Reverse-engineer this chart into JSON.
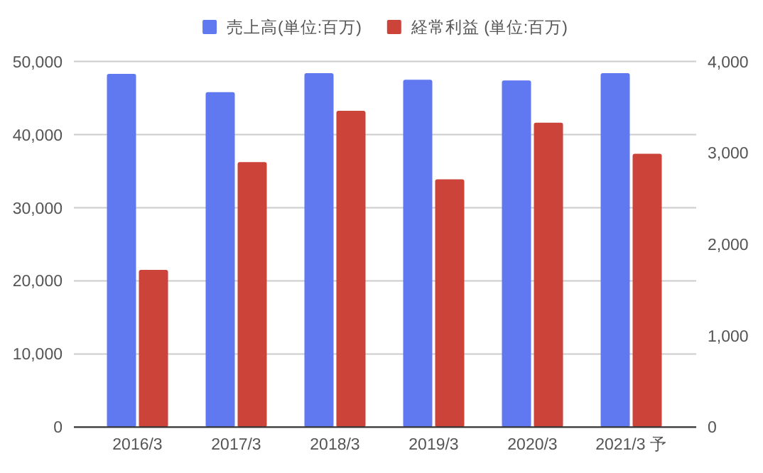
{
  "chart_data": {
    "type": "bar",
    "categories": [
      "2016/3",
      "2017/3",
      "2018/3",
      "2019/3",
      "2020/3",
      "2021/3 予"
    ],
    "series": [
      {
        "name": "売上高(単位:百万)",
        "color": "#6079f0",
        "values": [
          48300,
          45800,
          48400,
          47500,
          47400,
          48400
        ]
      },
      {
        "name": "経常利益 (単位:百万)",
        "color": "#cc4339",
        "axis": "y2",
        "values": [
          1720,
          2900,
          3460,
          2710,
          3330,
          2990
        ]
      }
    ],
    "ylim": [
      0,
      50000
    ],
    "yticks": [
      {
        "value": 0,
        "label": "0"
      },
      {
        "value": 10000,
        "label": "10,000"
      },
      {
        "value": 20000,
        "label": "20,000"
      },
      {
        "value": 30000,
        "label": "30,000"
      },
      {
        "value": 40000,
        "label": "40,000"
      },
      {
        "value": 50000,
        "label": "50,000"
      }
    ],
    "y2lim": [
      0,
      4000
    ],
    "y2ticks": [
      {
        "value": 0,
        "label": "0"
      },
      {
        "value": 1000,
        "label": "1,000"
      },
      {
        "value": 2000,
        "label": "2,000"
      },
      {
        "value": 3000,
        "label": "3,000"
      },
      {
        "value": 4000,
        "label": "4,000"
      }
    ],
    "grid": "y",
    "legend": "top"
  }
}
